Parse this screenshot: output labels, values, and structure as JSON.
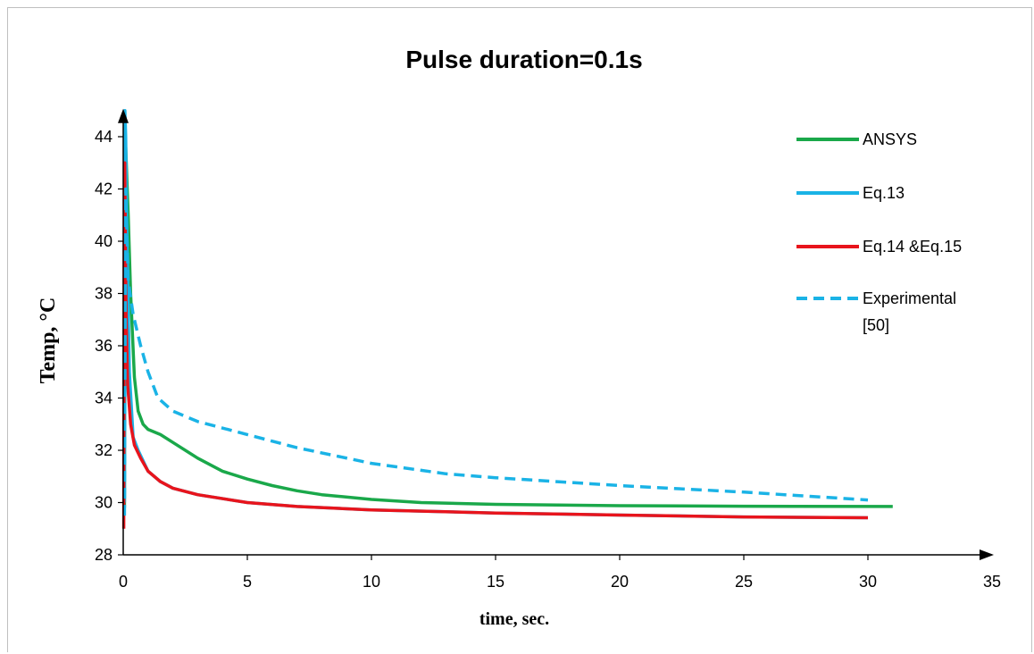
{
  "chart_data": {
    "type": "line",
    "title": "Pulse duration=0.1s",
    "xlabel": "time, sec.",
    "ylabel": "Temp, °C",
    "xlim": [
      0,
      35
    ],
    "ylim": [
      28,
      45
    ],
    "x_ticks": [
      "0",
      "5",
      "10",
      "15",
      "20",
      "25",
      "30",
      "35"
    ],
    "y_ticks": [
      "28",
      "30",
      "32",
      "34",
      "36",
      "38",
      "40",
      "42",
      "44"
    ],
    "grid": false,
    "legend_position": "right",
    "series": [
      {
        "name": "ANSYS",
        "color": "#1aa84a",
        "dash": "solid",
        "points": [
          [
            0.05,
            29.8
          ],
          [
            0.08,
            43.8
          ],
          [
            0.1,
            43.6
          ],
          [
            0.2,
            41
          ],
          [
            0.3,
            38
          ],
          [
            0.45,
            34.8
          ],
          [
            0.6,
            33.5
          ],
          [
            0.8,
            33.0
          ],
          [
            1,
            32.8
          ],
          [
            1.5,
            32.6
          ],
          [
            2,
            32.3
          ],
          [
            3,
            31.7
          ],
          [
            4,
            31.2
          ],
          [
            5,
            30.9
          ],
          [
            6,
            30.65
          ],
          [
            7,
            30.45
          ],
          [
            8,
            30.3
          ],
          [
            10,
            30.12
          ],
          [
            12,
            30.0
          ],
          [
            15,
            29.93
          ],
          [
            20,
            29.88
          ],
          [
            25,
            29.86
          ],
          [
            31,
            29.85
          ]
        ]
      },
      {
        "name": "Eq.13",
        "color": "#1ab3e6",
        "dash": "solid",
        "points": [
          [
            0.05,
            30
          ],
          [
            0.07,
            45
          ],
          [
            0.1,
            44
          ],
          [
            0.15,
            40
          ],
          [
            0.25,
            35
          ],
          [
            0.4,
            32.5
          ],
          [
            0.6,
            32.0
          ],
          [
            1,
            31.2
          ],
          [
            1.5,
            30.8
          ],
          [
            2,
            30.55
          ],
          [
            3,
            30.3
          ],
          [
            5,
            30.0
          ],
          [
            7,
            29.85
          ],
          [
            10,
            29.72
          ],
          [
            15,
            29.6
          ],
          [
            20,
            29.52
          ],
          [
            25,
            29.45
          ],
          [
            30,
            29.42
          ]
        ]
      },
      {
        "name": "Eq.14 &Eq.15",
        "color": "#e8141c",
        "dash": "solid",
        "points": [
          [
            0.02,
            29
          ],
          [
            0.04,
            40
          ],
          [
            0.06,
            43
          ],
          [
            0.09,
            39.5
          ],
          [
            0.12,
            37
          ],
          [
            0.18,
            34.5
          ],
          [
            0.3,
            33
          ],
          [
            0.45,
            32.2
          ],
          [
            0.7,
            31.7
          ],
          [
            1,
            31.2
          ],
          [
            1.5,
            30.8
          ],
          [
            2,
            30.55
          ],
          [
            3,
            30.3
          ],
          [
            5,
            30.0
          ],
          [
            7,
            29.85
          ],
          [
            10,
            29.72
          ],
          [
            15,
            29.6
          ],
          [
            20,
            29.52
          ],
          [
            25,
            29.45
          ],
          [
            30,
            29.42
          ]
        ]
      },
      {
        "name": "Experimental [50]",
        "color": "#1ab3e6",
        "dash": "dashed",
        "points": [
          [
            0.05,
            29.5
          ],
          [
            0.1,
            42
          ],
          [
            0.2,
            38.5
          ],
          [
            0.4,
            37.2
          ],
          [
            0.7,
            36
          ],
          [
            1,
            35
          ],
          [
            1.4,
            34
          ],
          [
            2,
            33.5
          ],
          [
            3,
            33.1
          ],
          [
            5,
            32.6
          ],
          [
            7,
            32.1
          ],
          [
            10,
            31.5
          ],
          [
            13,
            31.1
          ],
          [
            15,
            30.95
          ],
          [
            20,
            30.65
          ],
          [
            25,
            30.4
          ],
          [
            30,
            30.1
          ]
        ]
      }
    ]
  }
}
